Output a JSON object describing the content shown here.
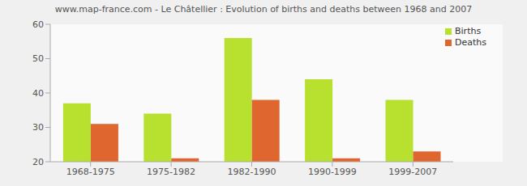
{
  "chart_data": {
    "type": "bar",
    "title": "www.map-france.com - Le Châtellier : Evolution of births and deaths between 1968 and 2007",
    "categories": [
      "1968-1975",
      "1975-1982",
      "1982-1990",
      "1990-1999",
      "1999-2007"
    ],
    "series": [
      {
        "name": "Births",
        "color": "#b8e02e",
        "values": [
          37,
          34,
          56,
          44,
          38
        ]
      },
      {
        "name": "Deaths",
        "color": "#e0662f",
        "values": [
          31,
          21,
          38,
          21,
          23
        ]
      }
    ],
    "ylim": [
      20,
      60
    ],
    "yticks": [
      20,
      30,
      40,
      50,
      60
    ],
    "grid": true,
    "legend": "upper right"
  }
}
